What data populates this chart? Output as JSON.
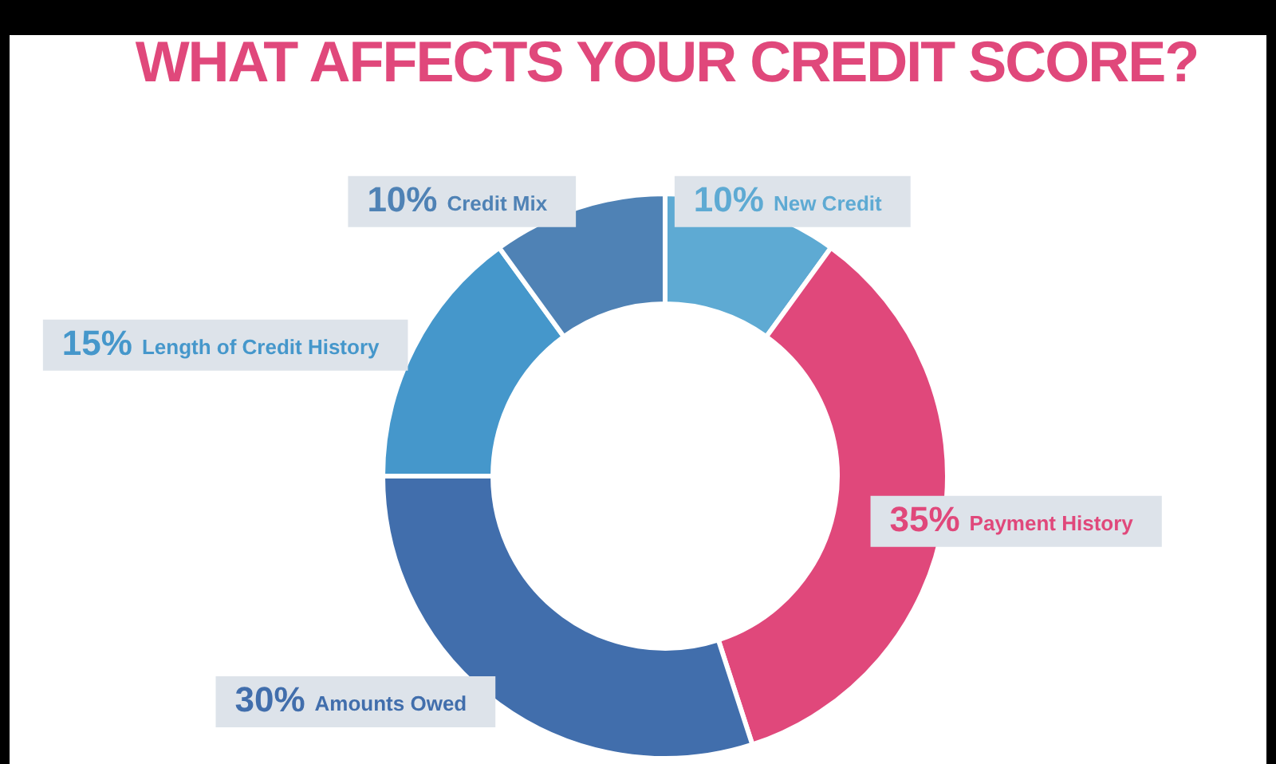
{
  "chart_data": {
    "type": "donut",
    "title": "WHAT AFFECTS YOUR CREDIT SCORE?",
    "categories": [
      "New Credit",
      "Payment History",
      "Amounts Owed",
      "Length of Credit History",
      "Credit Mix"
    ],
    "values": [
      10,
      35,
      30,
      15,
      10
    ],
    "value_labels": [
      "10%",
      "35%",
      "30%",
      "15%",
      "10%"
    ],
    "colors": [
      "#5eaad3",
      "#e0487b",
      "#416eac",
      "#4597cb",
      "#4f82b5"
    ]
  }
}
